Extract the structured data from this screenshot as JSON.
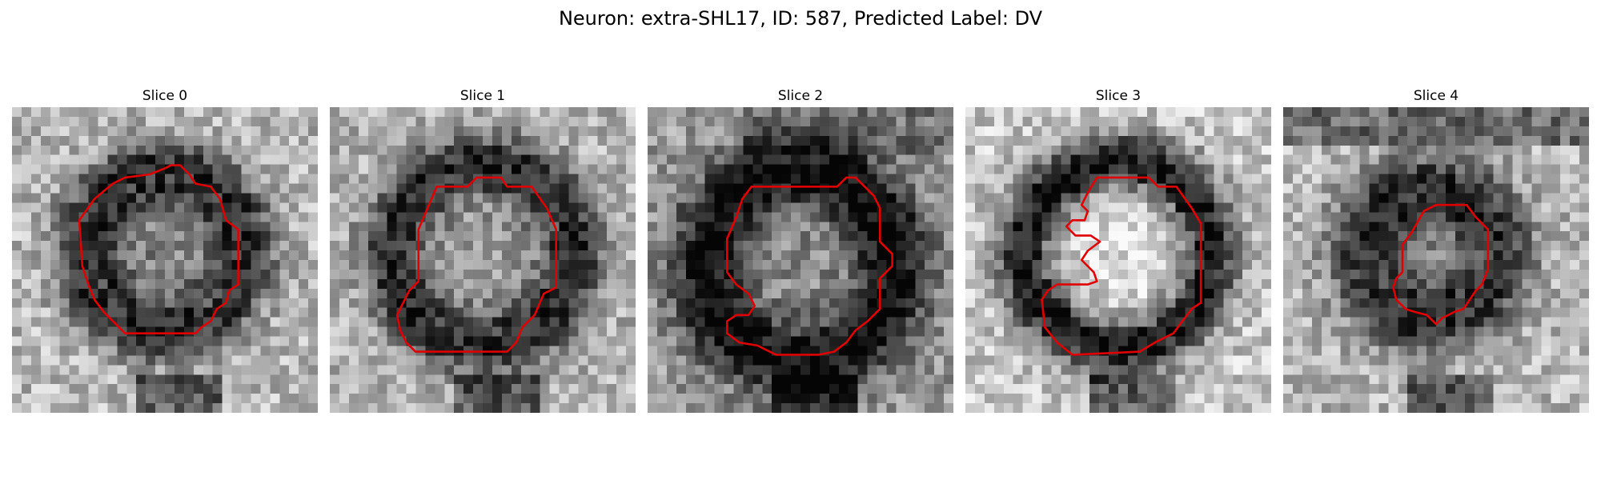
{
  "figure": {
    "title": "Neuron: extra-SHL17, ID: 587, Predicted Label: DV"
  },
  "colors": {
    "contour": "#e00000",
    "background": "#ffffff"
  },
  "panels": [
    {
      "label": "Slice 0"
    },
    {
      "label": "Slice 1"
    },
    {
      "label": "Slice 2"
    },
    {
      "label": "Slice 3"
    },
    {
      "label": "Slice 4"
    }
  ]
}
